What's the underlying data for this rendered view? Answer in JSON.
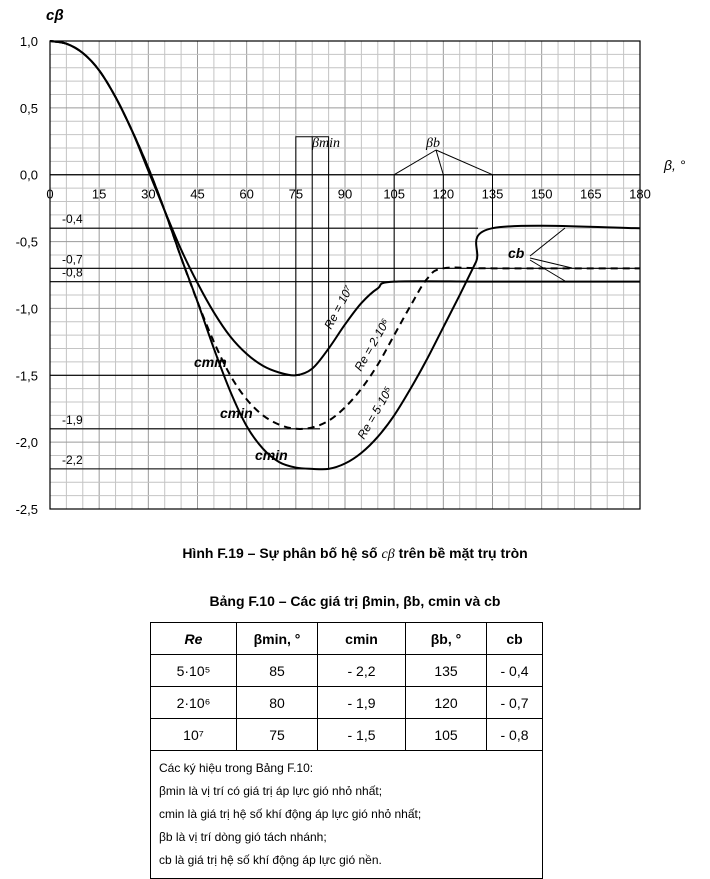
{
  "chart_data": {
    "type": "line",
    "ylabel": "cβ",
    "xlabel": "β, °",
    "xlim": [
      0,
      180
    ],
    "ylim": [
      -2.5,
      1.0
    ],
    "x_ticks": [
      "0",
      "15",
      "30",
      "45",
      "60",
      "75",
      "90",
      "105",
      "120",
      "135",
      "150",
      "165",
      "180"
    ],
    "y_ticks": [
      "1,0",
      "0,5",
      "0,0",
      "-0,5",
      "-1,0",
      "-1,5",
      "-2,0",
      "-2,5"
    ],
    "grid": true,
    "level_labels": [
      "-0,4",
      "-0,7",
      "-0,8",
      "-1,9",
      "-2,2"
    ],
    "series": [
      {
        "name": "Re = 10⁷",
        "style": "solid",
        "x": [
          0,
          5,
          10,
          15,
          20,
          25,
          30,
          35,
          40,
          45,
          50,
          55,
          60,
          65,
          70,
          75,
          80,
          85,
          90,
          95,
          100,
          105,
          135,
          180
        ],
        "y": [
          1.0,
          0.98,
          0.91,
          0.78,
          0.58,
          0.33,
          0.03,
          -0.27,
          -0.56,
          -0.81,
          -1.03,
          -1.21,
          -1.34,
          -1.43,
          -1.48,
          -1.5,
          -1.45,
          -1.3,
          -1.12,
          -0.96,
          -0.85,
          -0.8,
          -0.8,
          -0.8
        ]
      },
      {
        "name": "Re = 2·10⁶",
        "style": "dashed",
        "x": [
          0,
          5,
          10,
          15,
          20,
          25,
          30,
          35,
          40,
          45,
          50,
          55,
          60,
          65,
          70,
          75,
          80,
          85,
          90,
          95,
          100,
          105,
          110,
          115,
          120,
          135,
          180
        ],
        "y": [
          1.0,
          0.98,
          0.91,
          0.78,
          0.58,
          0.33,
          0.05,
          -0.27,
          -0.62,
          -0.95,
          -1.25,
          -1.5,
          -1.68,
          -1.8,
          -1.87,
          -1.9,
          -1.89,
          -1.84,
          -1.74,
          -1.6,
          -1.42,
          -1.2,
          -0.98,
          -0.78,
          -0.7,
          -0.7,
          -0.7
        ]
      },
      {
        "name": "Re = 5·10⁵",
        "style": "solid",
        "x": [
          0,
          5,
          10,
          15,
          20,
          25,
          30,
          35,
          40,
          45,
          50,
          55,
          60,
          65,
          70,
          75,
          80,
          85,
          90,
          95,
          100,
          105,
          110,
          115,
          120,
          125,
          130,
          135,
          180
        ],
        "y": [
          1.0,
          0.98,
          0.91,
          0.78,
          0.58,
          0.33,
          0.05,
          -0.27,
          -0.62,
          -0.95,
          -1.3,
          -1.62,
          -1.88,
          -2.05,
          -2.15,
          -2.19,
          -2.2,
          -2.2,
          -2.16,
          -2.08,
          -1.96,
          -1.8,
          -1.6,
          -1.38,
          -1.14,
          -0.9,
          -0.65,
          -0.4,
          -0.4
        ]
      }
    ],
    "annotations": {
      "beta_min": "βmin",
      "beta_b": "βb",
      "c_b": "cb",
      "c_min_labels": [
        "cmin",
        "cmin",
        "cmin"
      ]
    }
  },
  "figure_caption": {
    "prefix": "Hình F.19 – Sự phân bố hệ số",
    "symbol": "cβ",
    "suffix": "trên bề mặt trụ tròn"
  },
  "table_title": {
    "text": "Bảng F.10 – Các giá trị βmin, βb, cmin và cb"
  },
  "table": {
    "headers": [
      "Re",
      "βmin, °",
      "cmin",
      "βb, °",
      "cb"
    ],
    "rows": [
      [
        "5·10⁵",
        "85",
        "- 2,2",
        "135",
        "- 0,4"
      ],
      [
        "2·10⁶",
        "80",
        "- 1,9",
        "120",
        "- 0,7"
      ],
      [
        "10⁷",
        "75",
        "- 1,5",
        "105",
        "- 0,8"
      ]
    ],
    "notes": [
      "Các ký hiệu trong Bảng F.10:",
      "βmin là vị trí có giá trị áp lực gió nhỏ nhất;",
      "cmin là giá trị hệ số khí động áp lực gió nhỏ nhất;",
      "βb là vị trí dòng gió tách nhánh;",
      "cb là giá trị hệ số khí động áp lực gió nền."
    ]
  }
}
